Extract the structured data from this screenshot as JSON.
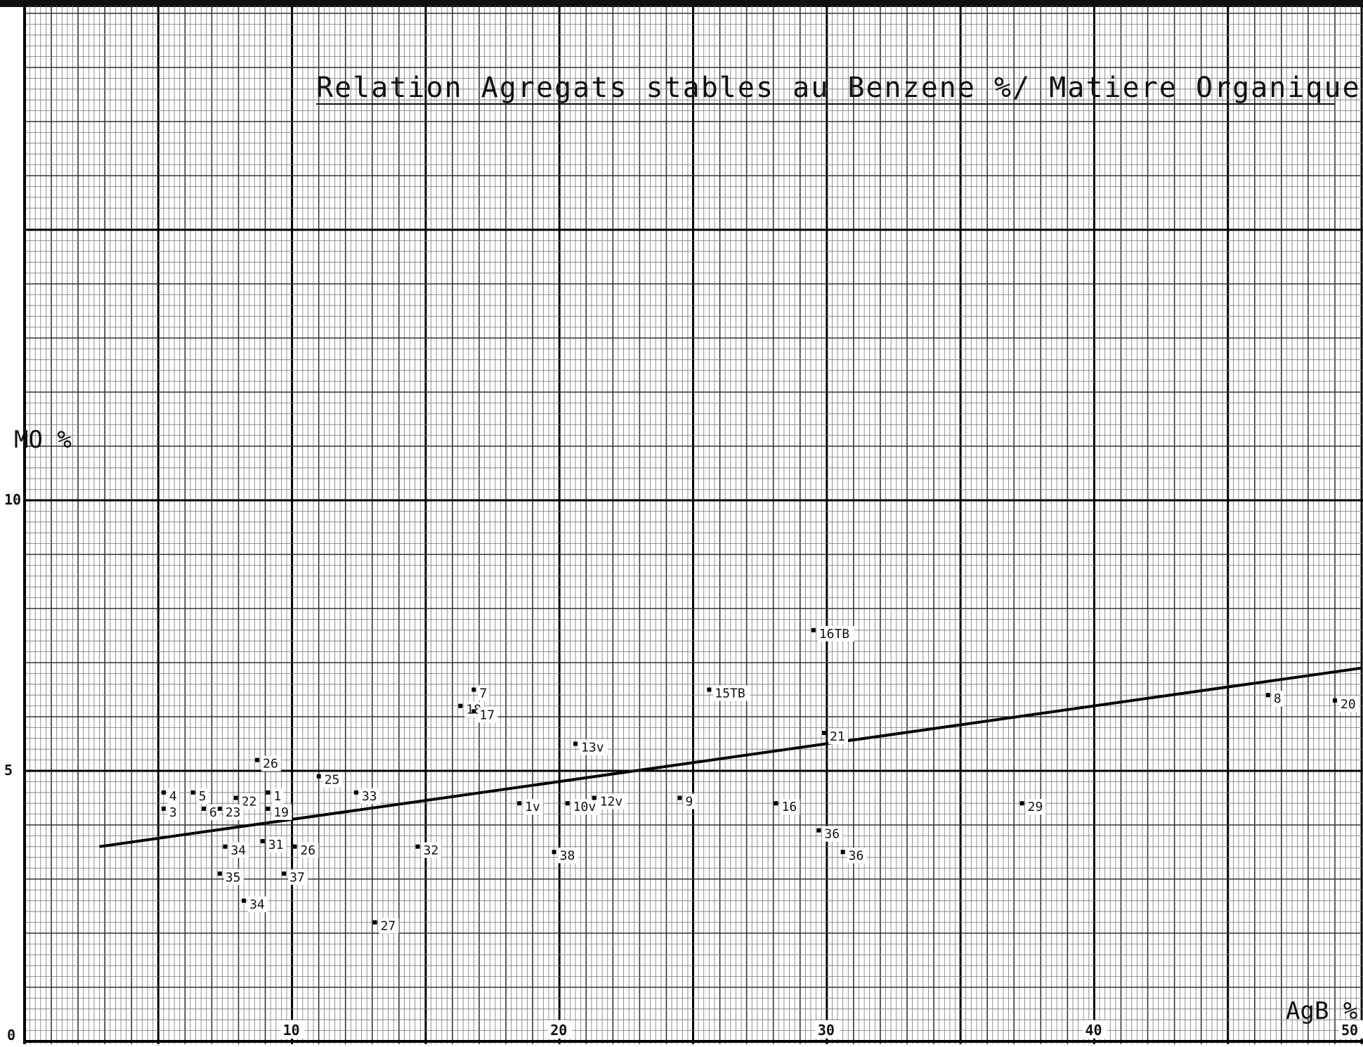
{
  "chart_data": {
    "type": "scatter",
    "title": "Relation Agregats stables au Benzene %/ Matiere Organique totale %",
    "xlabel": "AgB %",
    "ylabel": "MO %",
    "xlim": [
      0,
      50
    ],
    "ylim": [
      0,
      19.5
    ],
    "x_ticks": [
      "10",
      "20",
      "30",
      "40",
      "50"
    ],
    "y_ticks": [
      "0",
      "5",
      "10"
    ],
    "grid": true,
    "points": [
      {
        "label": "4",
        "x": 5.2,
        "y": 4.6
      },
      {
        "label": "3",
        "x": 5.2,
        "y": 4.3
      },
      {
        "label": "5",
        "x": 6.3,
        "y": 4.6
      },
      {
        "label": "6",
        "x": 6.7,
        "y": 4.3
      },
      {
        "label": "22",
        "x": 7.9,
        "y": 4.5
      },
      {
        "label": "23",
        "x": 7.3,
        "y": 4.3
      },
      {
        "label": "26",
        "x": 8.7,
        "y": 5.2
      },
      {
        "label": "1",
        "x": 9.1,
        "y": 4.6
      },
      {
        "label": "19",
        "x": 9.1,
        "y": 4.3
      },
      {
        "label": "25",
        "x": 11.0,
        "y": 4.9
      },
      {
        "label": "33",
        "x": 12.4,
        "y": 4.6
      },
      {
        "label": "34",
        "x": 7.5,
        "y": 3.6
      },
      {
        "label": "31",
        "x": 8.9,
        "y": 3.7
      },
      {
        "label": "26",
        "x": 10.1,
        "y": 3.6
      },
      {
        "label": "35",
        "x": 7.3,
        "y": 3.1
      },
      {
        "label": "37",
        "x": 9.7,
        "y": 3.1
      },
      {
        "label": "34",
        "x": 8.2,
        "y": 2.6
      },
      {
        "label": "27",
        "x": 13.1,
        "y": 2.2
      },
      {
        "label": "32",
        "x": 14.7,
        "y": 3.6
      },
      {
        "label": "18",
        "x": 16.3,
        "y": 6.2
      },
      {
        "label": "7",
        "x": 16.8,
        "y": 6.5
      },
      {
        "label": "17",
        "x": 16.8,
        "y": 6.1
      },
      {
        "label": "1v",
        "x": 18.5,
        "y": 4.4
      },
      {
        "label": "10v",
        "x": 20.3,
        "y": 4.4
      },
      {
        "label": "12v",
        "x": 21.3,
        "y": 4.5
      },
      {
        "label": "13v",
        "x": 20.6,
        "y": 5.5
      },
      {
        "label": "38",
        "x": 19.8,
        "y": 3.5
      },
      {
        "label": "9",
        "x": 24.5,
        "y": 4.5
      },
      {
        "label": "15TB",
        "x": 25.6,
        "y": 6.5
      },
      {
        "label": "16",
        "x": 28.1,
        "y": 4.4
      },
      {
        "label": "16TB",
        "x": 29.5,
        "y": 7.6
      },
      {
        "label": "21",
        "x": 29.9,
        "y": 5.7
      },
      {
        "label": "36",
        "x": 29.7,
        "y": 3.9
      },
      {
        "label": "36",
        "x": 30.6,
        "y": 3.5
      },
      {
        "label": "29",
        "x": 37.3,
        "y": 4.4
      },
      {
        "label": "8",
        "x": 46.5,
        "y": 6.4
      },
      {
        "label": "20",
        "x": 49.0,
        "y": 6.3
      }
    ],
    "trendline": {
      "x": [
        2.8,
        50.0
      ],
      "y": [
        3.6,
        6.9
      ]
    }
  }
}
